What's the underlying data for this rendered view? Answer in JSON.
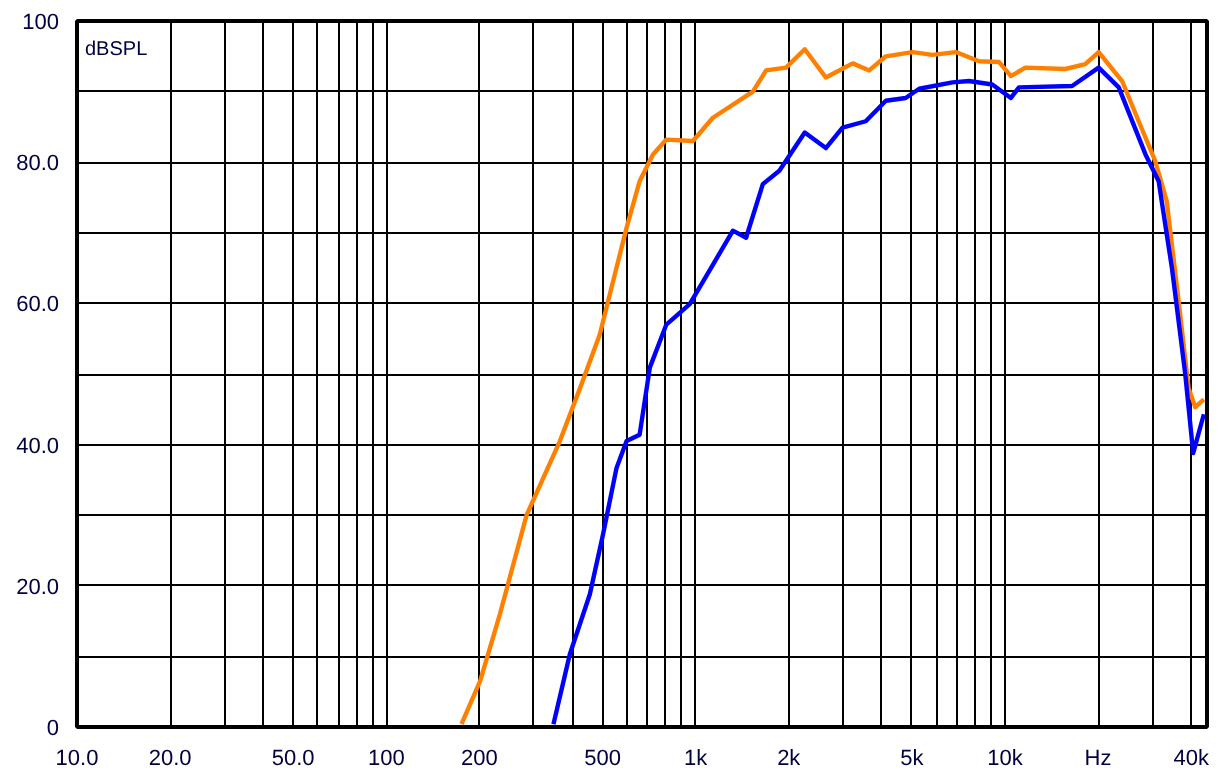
{
  "chart_data": {
    "type": "line",
    "ylabel": "dBSPL",
    "log": "x",
    "grid": true,
    "line_style": "solid",
    "marker": "none",
    "xlim": [
      10,
      45000
    ],
    "ylim": [
      0,
      100
    ],
    "xticks": [
      {
        "value": 10,
        "label": "10.0"
      },
      {
        "value": 20,
        "label": "20.0"
      },
      {
        "value": 30,
        "label": null
      },
      {
        "value": 40,
        "label": null
      },
      {
        "value": 50,
        "label": "50.0"
      },
      {
        "value": 60,
        "label": null
      },
      {
        "value": 70,
        "label": null
      },
      {
        "value": 80,
        "label": null
      },
      {
        "value": 90,
        "label": null
      },
      {
        "value": 100,
        "label": "100"
      },
      {
        "value": 200,
        "label": "200"
      },
      {
        "value": 300,
        "label": null
      },
      {
        "value": 400,
        "label": null
      },
      {
        "value": 500,
        "label": "500"
      },
      {
        "value": 600,
        "label": null
      },
      {
        "value": 700,
        "label": null
      },
      {
        "value": 800,
        "label": null
      },
      {
        "value": 900,
        "label": null
      },
      {
        "value": 1000,
        "label": "1k"
      },
      {
        "value": 2000,
        "label": "2k"
      },
      {
        "value": 3000,
        "label": null
      },
      {
        "value": 4000,
        "label": null
      },
      {
        "value": 5000,
        "label": "5k"
      },
      {
        "value": 6000,
        "label": null
      },
      {
        "value": 7000,
        "label": null
      },
      {
        "value": 8000,
        "label": null
      },
      {
        "value": 9000,
        "label": null
      },
      {
        "value": 10000,
        "label": "10k"
      },
      {
        "value": 20000,
        "label": "Hz"
      },
      {
        "value": 30000,
        "label": null
      },
      {
        "value": 40000,
        "label": "40k"
      }
    ],
    "yticks": [
      0,
      {
        "value": 10,
        "label": null
      },
      {
        "value": 20,
        "label": "20.0"
      },
      {
        "value": 30,
        "label": null
      },
      {
        "value": 40,
        "label": "40.0"
      },
      {
        "value": 50,
        "label": null
      },
      {
        "value": 60,
        "label": "60.0"
      },
      {
        "value": 70,
        "label": null
      },
      {
        "value": 80,
        "label": "80.0"
      },
      {
        "value": 90,
        "label": null
      },
      100
    ],
    "series": [
      {
        "color": "#ff8000",
        "x": [
          175,
          201,
          233,
          284,
          364,
          423,
          490,
          528,
          598,
          659,
          728,
          803,
          980,
          1137,
          1531,
          1690,
          1960,
          2253,
          2636,
          3219,
          3641,
          4121,
          5024,
          5834,
          6934,
          8242,
          9560,
          10455,
          11650,
          15670,
          18190,
          20090,
          23920,
          27060,
          30600,
          33340,
          36430,
          39240,
          41230,
          43960
        ],
        "values": [
          0.4,
          6.5,
          16,
          30,
          40.5,
          48,
          55.6,
          61.3,
          70.7,
          77.3,
          81.1,
          83.2,
          83,
          86.3,
          90,
          93,
          93.4,
          96,
          92,
          94,
          93,
          95,
          95.6,
          95.2,
          95.6,
          94.3,
          94.2,
          92.2,
          93.4,
          93.2,
          93.9,
          95.6,
          91.5,
          85.8,
          80.2,
          74.5,
          60.3,
          48,
          45.3,
          46.4
        ]
      },
      {
        "color": "#0000ff",
        "x": [
          347,
          392,
          455,
          502,
          555,
          598,
          659,
          711,
          804,
          957,
          1138,
          1320,
          1456,
          1649,
          1865,
          1960,
          2253,
          2636,
          2985,
          3548,
          4121,
          4775,
          5282,
          6765,
          7650,
          9100,
          10455,
          11100,
          16480,
          20090,
          23330,
          28470,
          31400,
          34660,
          38270,
          40600,
          43960
        ],
        "values": [
          0.4,
          10.3,
          18.8,
          27.3,
          36.7,
          40.5,
          41.4,
          50.9,
          57,
          59.9,
          65.5,
          70.3,
          69.3,
          76.9,
          78.8,
          80.2,
          84.2,
          82,
          84.9,
          85.8,
          88.7,
          89.1,
          90.4,
          91.3,
          91.5,
          91,
          89.1,
          90.6,
          90.8,
          93.4,
          90.6,
          81.1,
          77.3,
          65,
          50,
          38.8,
          44.3
        ]
      }
    ]
  }
}
